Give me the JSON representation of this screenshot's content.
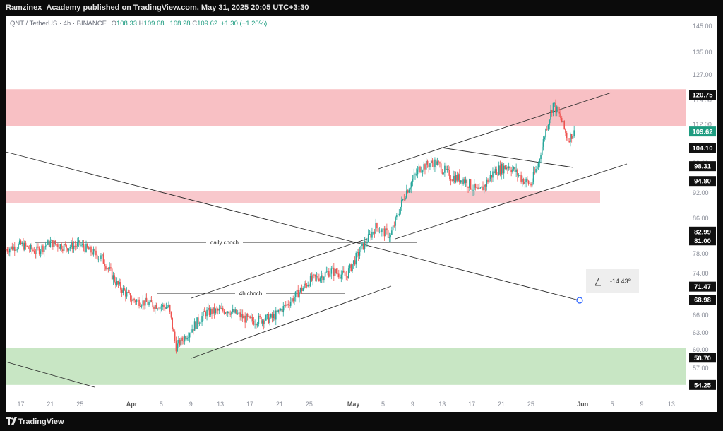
{
  "header": {
    "publisher_line": "Ramzinex_Academy published on TradingView.com, May 31, 2025 20:05 UTC+3:30"
  },
  "legend": {
    "symbol": "QNT / TetherUS · 4h · BINANCE",
    "open_label": "O",
    "open": "108.33",
    "high_label": "H",
    "high": "109.68",
    "low_label": "L",
    "low": "108.28",
    "close_label": "C",
    "close": "109.62",
    "change": "+1.30 (+1.20%)"
  },
  "footer": {
    "brand": "TradingView"
  },
  "colors": {
    "bull": "#26a69a",
    "bear": "#ef5350",
    "resistance_zone": "#f8c0c4",
    "support_zone": "#c8e6c4",
    "price_tag": "#1e9c80"
  },
  "chart_data": {
    "type": "candlestick",
    "title": "",
    "xlabel": "",
    "ylabel": "",
    "x_tick_labels": [
      "17",
      "21",
      "25",
      "Apr",
      "5",
      "9",
      "13",
      "17",
      "21",
      "25",
      "May",
      "5",
      "9",
      "13",
      "17",
      "21",
      "25",
      "Jun",
      "5",
      "9",
      "13"
    ],
    "y_tick_labels": [
      "145.00",
      "135.00",
      "127.00",
      "119.00",
      "112.00",
      "104.00",
      "99.00",
      "92.00",
      "86.00",
      "78.00",
      "74.00",
      "66.00",
      "63.00",
      "60.00",
      "57.00",
      "54.00"
    ],
    "ylim": [
      52.0,
      150.0
    ],
    "price_labels": [
      {
        "text": "120.75",
        "value": 120.75,
        "style": "dark"
      },
      {
        "text": "109.62",
        "value": 109.62,
        "style": "current"
      },
      {
        "text": "104.10",
        "value": 104.1,
        "style": "dark"
      },
      {
        "text": "98.31",
        "value": 98.31,
        "style": "dark"
      },
      {
        "text": "94.80",
        "value": 94.8,
        "style": "dark"
      },
      {
        "text": "82.99",
        "value": 82.99,
        "style": "dark"
      },
      {
        "text": "81.00",
        "value": 81.0,
        "style": "dark"
      },
      {
        "text": "71.47",
        "value": 71.47,
        "style": "dark"
      },
      {
        "text": "68.98",
        "value": 68.98,
        "style": "dark"
      },
      {
        "text": "58.70",
        "value": 58.7,
        "style": "dark"
      },
      {
        "text": "54.25",
        "value": 54.25,
        "style": "dark"
      }
    ],
    "zones": [
      {
        "name": "resistance",
        "low": 111.5,
        "high": 122.5,
        "color": "#f8c0c4"
      },
      {
        "name": "mid-resistance",
        "low": 89.5,
        "high": 92.5,
        "color": "#f8c8cc"
      },
      {
        "name": "support",
        "low": 54.25,
        "high": 60.3,
        "color": "#c8e6c4"
      }
    ],
    "annotations": [
      {
        "text": "daily choch",
        "value": 82.0
      },
      {
        "text": "4h choch",
        "value": 68.98
      }
    ],
    "measure_label": "-14.43°",
    "price_path": [
      {
        "date": "Mar 15",
        "price": 79.0
      },
      {
        "date": "Mar 17",
        "price": 80.0
      },
      {
        "date": "Mar 19",
        "price": 78.5
      },
      {
        "date": "Mar 21",
        "price": 80.5
      },
      {
        "date": "Mar 23",
        "price": 79.5
      },
      {
        "date": "Mar 25",
        "price": 80.0
      },
      {
        "date": "Mar 28",
        "price": 77.0
      },
      {
        "date": "Mar 30",
        "price": 72.0
      },
      {
        "date": "Apr 1",
        "price": 69.0
      },
      {
        "date": "Apr 4",
        "price": 68.0
      },
      {
        "date": "Apr 6",
        "price": 67.5
      },
      {
        "date": "Apr 7",
        "price": 60.5
      },
      {
        "date": "Apr 8",
        "price": 62.0
      },
      {
        "date": "Apr 11",
        "price": 66.5
      },
      {
        "date": "Apr 14",
        "price": 67.0
      },
      {
        "date": "Apr 17",
        "price": 65.0
      },
      {
        "date": "Apr 20",
        "price": 65.5
      },
      {
        "date": "Apr 22",
        "price": 68.0
      },
      {
        "date": "Apr 25",
        "price": 72.5
      },
      {
        "date": "Apr 28",
        "price": 74.5
      },
      {
        "date": "Apr 30",
        "price": 73.5
      },
      {
        "date": "May 2",
        "price": 79.0
      },
      {
        "date": "May 4",
        "price": 84.0
      },
      {
        "date": "May 6",
        "price": 82.0
      },
      {
        "date": "May 8",
        "price": 92.0
      },
      {
        "date": "May 10",
        "price": 98.0
      },
      {
        "date": "May 12",
        "price": 99.5
      },
      {
        "date": "May 14",
        "price": 96.0
      },
      {
        "date": "May 16",
        "price": 95.0
      },
      {
        "date": "May 18",
        "price": 92.0
      },
      {
        "date": "May 20",
        "price": 97.0
      },
      {
        "date": "May 22",
        "price": 98.5
      },
      {
        "date": "May 24",
        "price": 95.0
      },
      {
        "date": "May 25",
        "price": 94.0
      },
      {
        "date": "May 26",
        "price": 99.0
      },
      {
        "date": "May 27",
        "price": 110.0
      },
      {
        "date": "May 28",
        "price": 118.0
      },
      {
        "date": "May 29",
        "price": 114.0
      },
      {
        "date": "May 30",
        "price": 107.0
      },
      {
        "date": "May 31",
        "price": 109.62
      }
    ]
  }
}
